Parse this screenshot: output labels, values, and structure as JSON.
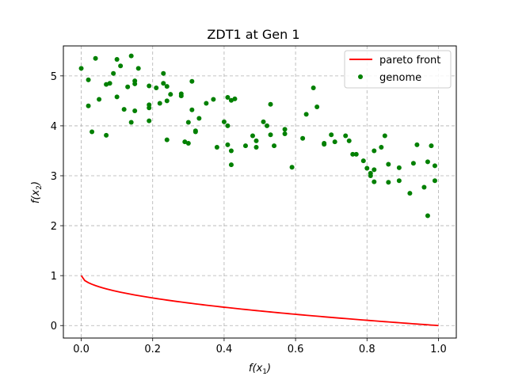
{
  "chart_data": {
    "type": "scatter",
    "title": "ZDT1 at Gen 1",
    "xlabel_var": "f(x",
    "xlabel_sub": "1",
    "xlabel_close": ")",
    "ylabel_var": "f(x",
    "ylabel_sub": "2",
    "ylabel_close": ")",
    "xlim": [
      -0.05,
      1.05
    ],
    "ylim": [
      -0.25,
      5.6
    ],
    "xticks": [
      0.0,
      0.2,
      0.4,
      0.6,
      0.8,
      1.0
    ],
    "xtick_labels": [
      "0.0",
      "0.2",
      "0.4",
      "0.6",
      "0.8",
      "1.0"
    ],
    "yticks": [
      0,
      1,
      2,
      3,
      4,
      5
    ],
    "ytick_labels": [
      "0",
      "1",
      "2",
      "3",
      "4",
      "5"
    ],
    "grid": true,
    "legend_position": "top-right",
    "series": [
      {
        "name": "pareto front",
        "kind": "line",
        "color": "#ff0000",
        "function": "1 - sqrt(x)",
        "x": [
          0,
          0.01,
          0.02,
          0.05,
          0.1,
          0.15,
          0.2,
          0.3,
          0.4,
          0.5,
          0.6,
          0.7,
          0.8,
          0.9,
          1.0
        ],
        "y": [
          1,
          0.9,
          0.859,
          0.776,
          0.684,
          0.613,
          0.553,
          0.452,
          0.368,
          0.293,
          0.225,
          0.163,
          0.106,
          0.051,
          0
        ]
      },
      {
        "name": "genome",
        "kind": "scatter",
        "color": "#008000",
        "points": [
          [
            0.0,
            5.15
          ],
          [
            0.02,
            4.92
          ],
          [
            0.04,
            5.35
          ],
          [
            0.02,
            4.4
          ],
          [
            0.03,
            3.88
          ],
          [
            0.05,
            4.53
          ],
          [
            0.07,
            4.83
          ],
          [
            0.08,
            4.85
          ],
          [
            0.07,
            3.81
          ],
          [
            0.09,
            5.05
          ],
          [
            0.1,
            4.58
          ],
          [
            0.1,
            5.33
          ],
          [
            0.11,
            5.2
          ],
          [
            0.12,
            4.33
          ],
          [
            0.13,
            4.78
          ],
          [
            0.14,
            5.4
          ],
          [
            0.15,
            4.9
          ],
          [
            0.15,
            4.84
          ],
          [
            0.15,
            4.3
          ],
          [
            0.14,
            4.07
          ],
          [
            0.16,
            5.15
          ],
          [
            0.19,
            4.8
          ],
          [
            0.19,
            4.42
          ],
          [
            0.19,
            4.36
          ],
          [
            0.19,
            4.1
          ],
          [
            0.21,
            4.76
          ],
          [
            0.22,
            4.45
          ],
          [
            0.23,
            5.05
          ],
          [
            0.23,
            4.85
          ],
          [
            0.24,
            4.79
          ],
          [
            0.24,
            4.5
          ],
          [
            0.24,
            3.72
          ],
          [
            0.25,
            4.63
          ],
          [
            0.28,
            4.64
          ],
          [
            0.28,
            4.6
          ],
          [
            0.29,
            3.68
          ],
          [
            0.3,
            4.07
          ],
          [
            0.3,
            3.65
          ],
          [
            0.31,
            4.32
          ],
          [
            0.31,
            4.89
          ],
          [
            0.32,
            3.9
          ],
          [
            0.33,
            4.15
          ],
          [
            0.32,
            3.88
          ],
          [
            0.35,
            4.45
          ],
          [
            0.37,
            4.53
          ],
          [
            0.38,
            3.57
          ],
          [
            0.4,
            4.08
          ],
          [
            0.41,
            4.57
          ],
          [
            0.41,
            4.0
          ],
          [
            0.41,
            3.62
          ],
          [
            0.42,
            3.5
          ],
          [
            0.42,
            4.51
          ],
          [
            0.42,
            3.22
          ],
          [
            0.43,
            4.54
          ],
          [
            0.46,
            3.6
          ],
          [
            0.48,
            3.8
          ],
          [
            0.49,
            3.7
          ],
          [
            0.49,
            3.57
          ],
          [
            0.51,
            4.08
          ],
          [
            0.52,
            4.0
          ],
          [
            0.53,
            4.43
          ],
          [
            0.53,
            3.82
          ],
          [
            0.54,
            3.6
          ],
          [
            0.57,
            3.93
          ],
          [
            0.57,
            3.84
          ],
          [
            0.59,
            3.17
          ],
          [
            0.62,
            3.75
          ],
          [
            0.63,
            4.23
          ],
          [
            0.65,
            4.76
          ],
          [
            0.66,
            4.38
          ],
          [
            0.68,
            3.65
          ],
          [
            0.68,
            3.63
          ],
          [
            0.7,
            3.82
          ],
          [
            0.71,
            3.68
          ],
          [
            0.74,
            3.8
          ],
          [
            0.75,
            3.7
          ],
          [
            0.76,
            3.43
          ],
          [
            0.77,
            3.43
          ],
          [
            0.79,
            3.3
          ],
          [
            0.8,
            3.15
          ],
          [
            0.81,
            3.05
          ],
          [
            0.81,
            3.0
          ],
          [
            0.82,
            3.12
          ],
          [
            0.82,
            2.88
          ],
          [
            0.82,
            3.5
          ],
          [
            0.84,
            3.57
          ],
          [
            0.85,
            3.8
          ],
          [
            0.86,
            3.23
          ],
          [
            0.86,
            2.87
          ],
          [
            0.89,
            3.16
          ],
          [
            0.89,
            2.9
          ],
          [
            0.92,
            2.65
          ],
          [
            0.93,
            3.25
          ],
          [
            0.94,
            3.62
          ],
          [
            0.96,
            2.77
          ],
          [
            0.97,
            2.2
          ],
          [
            0.97,
            3.28
          ],
          [
            0.98,
            3.6
          ],
          [
            0.99,
            3.2
          ],
          [
            0.99,
            2.9
          ]
        ]
      }
    ]
  }
}
